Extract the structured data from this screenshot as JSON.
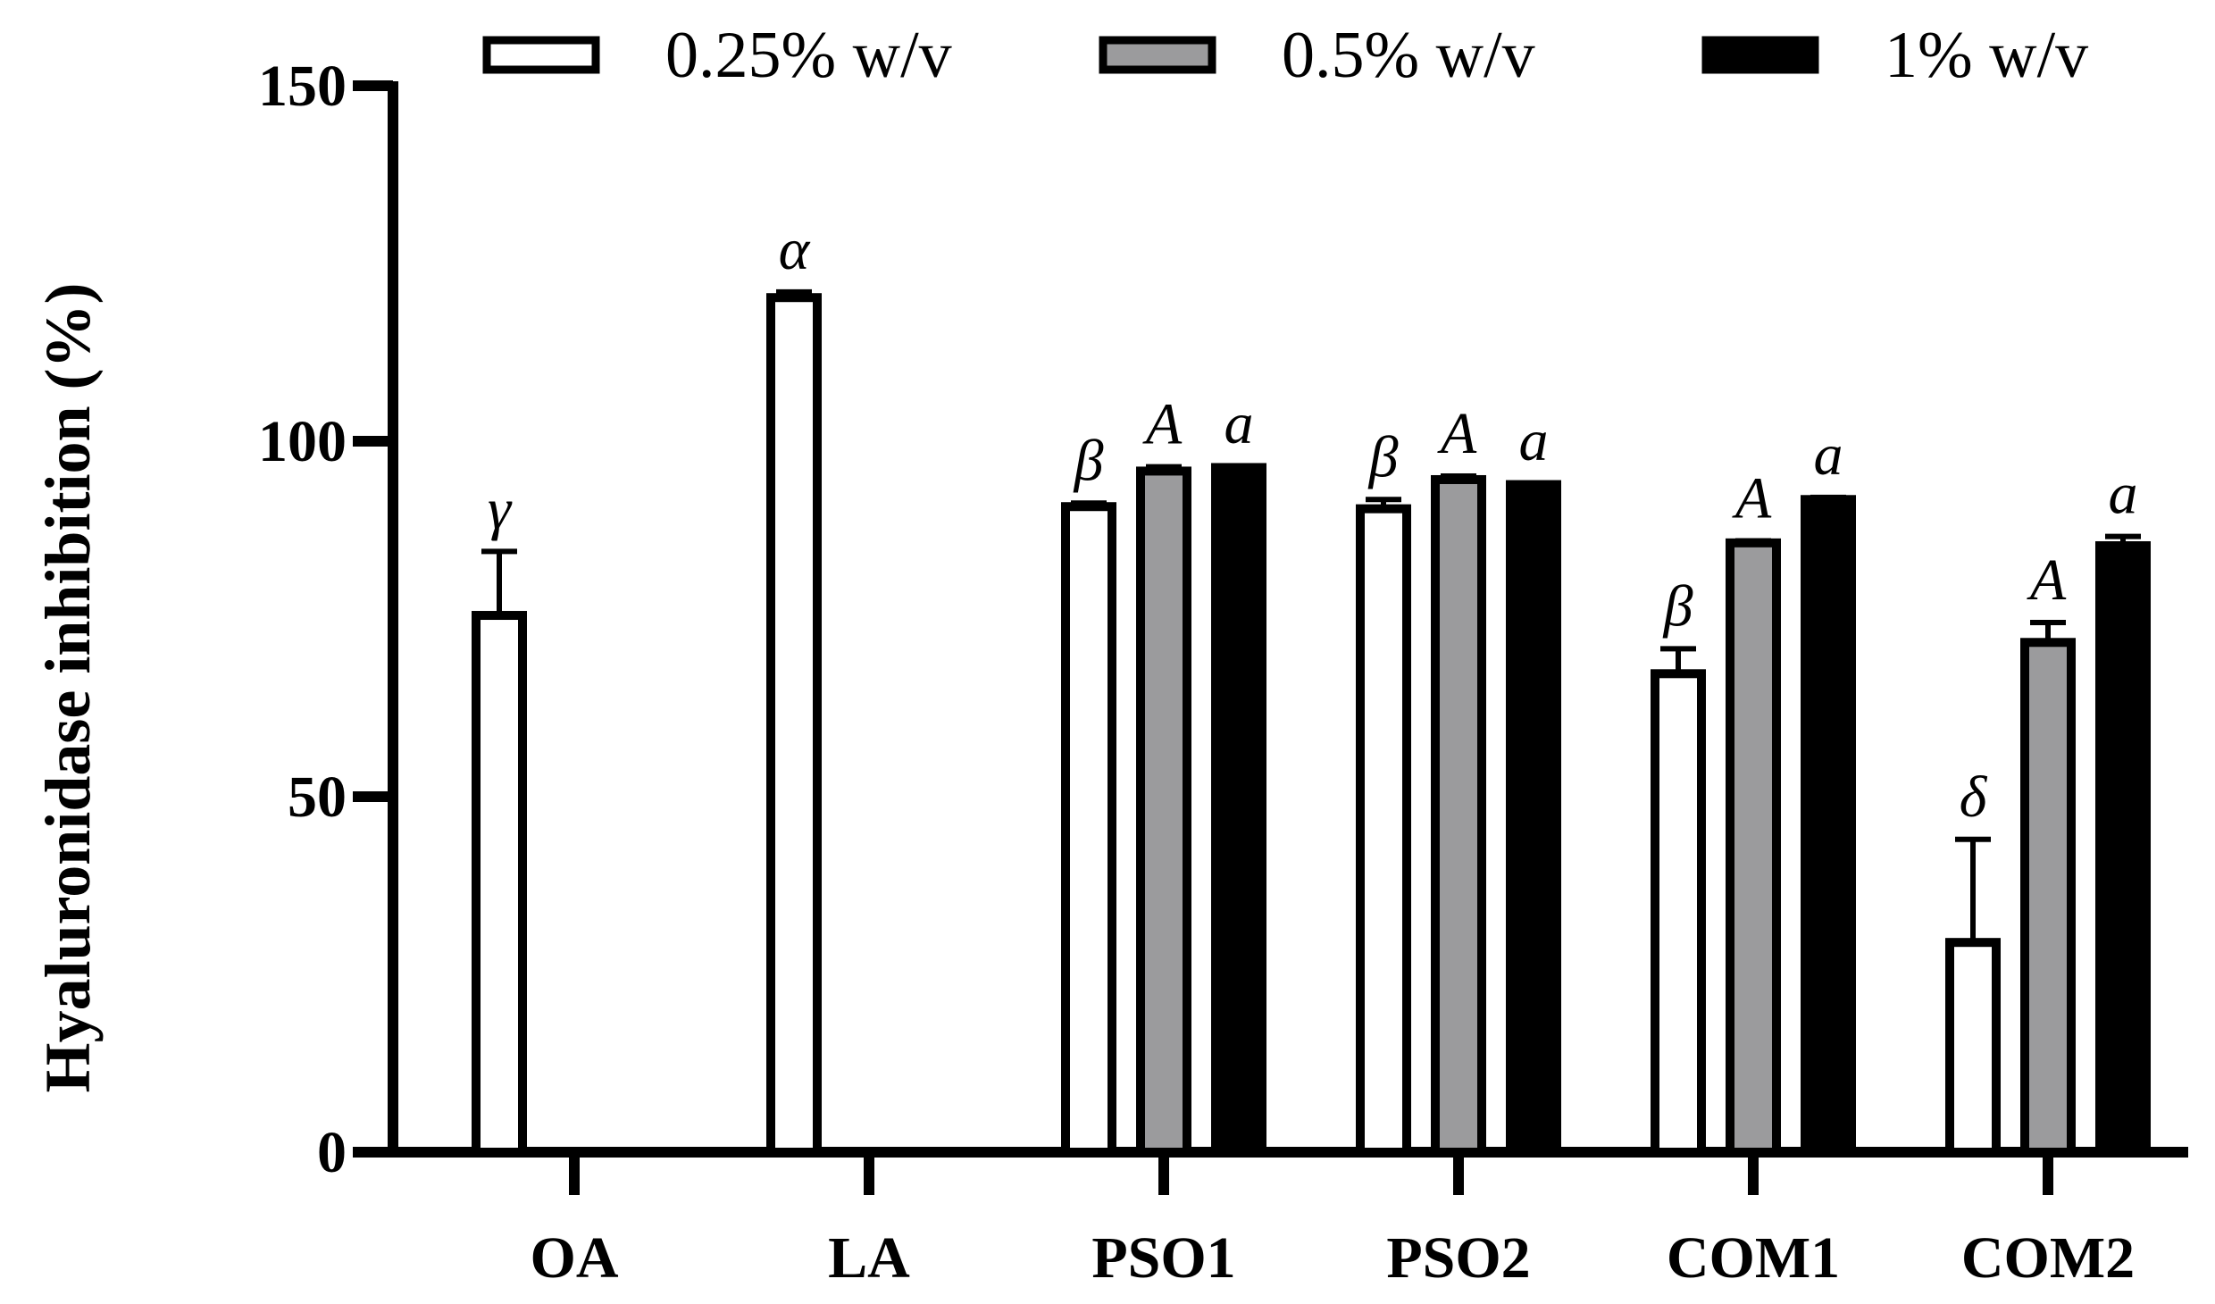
{
  "chart_data": {
    "type": "bar",
    "title": "",
    "xlabel": "",
    "ylabel": "Hyaluronidase inhibition (%)",
    "ylim": [
      0,
      150
    ],
    "yticks": [
      0,
      50,
      100,
      150
    ],
    "grid": false,
    "legend_position": "top",
    "categories": [
      "OA",
      "LA",
      "PSO1",
      "PSO2",
      "COM1",
      "COM2"
    ],
    "series": [
      {
        "name": "0.25% w/v",
        "color": "#ffffff",
        "values": [
          75.5,
          120.2,
          90.8,
          90.5,
          67.3,
          29.5
        ],
        "errors": [
          9.0,
          0.8,
          0.5,
          1.3,
          3.5,
          14.5
        ],
        "labels": [
          "γ",
          "α",
          "β",
          "β",
          "β",
          "δ"
        ]
      },
      {
        "name": "0.5% w/v",
        "color": "#9b9b9d",
        "values": [
          null,
          null,
          95.8,
          94.6,
          85.7,
          71.7
        ],
        "errors": [
          null,
          null,
          0.6,
          0.5,
          0.3,
          2.8
        ],
        "labels": [
          "",
          "",
          "A",
          "A",
          "A",
          "A"
        ]
      },
      {
        "name": "1% w/v",
        "color": "#000000",
        "values": [
          null,
          null,
          96.3,
          93.9,
          91.8,
          85.3
        ],
        "errors": [
          null,
          null,
          0.2,
          0.2,
          0.3,
          1.3
        ],
        "labels": [
          "",
          "",
          "a",
          "a",
          "a",
          "a"
        ]
      }
    ]
  }
}
